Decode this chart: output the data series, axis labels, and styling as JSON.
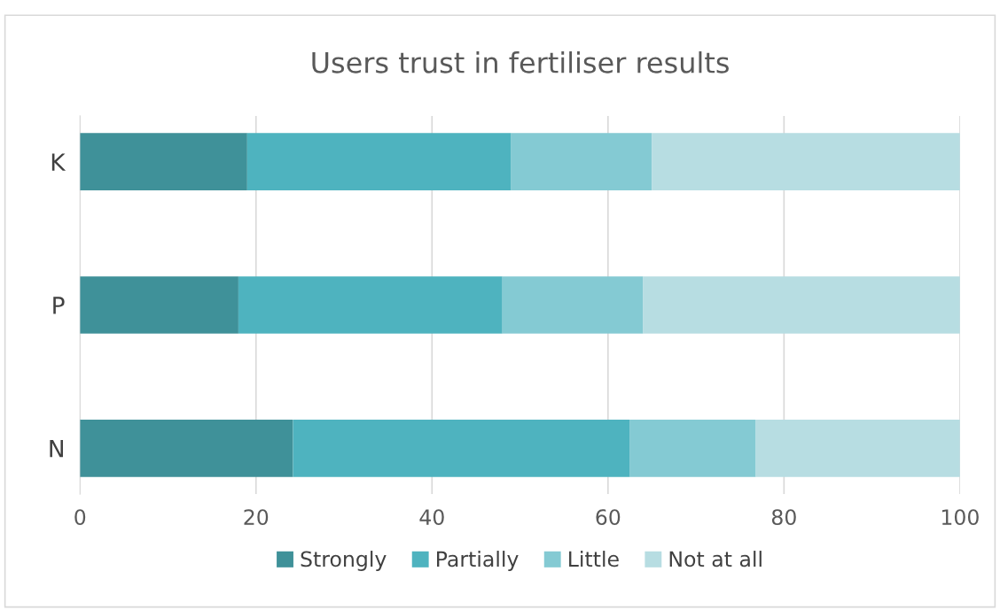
{
  "chart_data": {
    "type": "bar",
    "orientation": "horizontal",
    "stacked": true,
    "title": "Users trust in fertiliser results",
    "categories": [
      "K",
      "P",
      "N"
    ],
    "series": [
      {
        "name": "Strongly",
        "color": "#3f9199",
        "values": [
          19,
          18,
          24.2
        ]
      },
      {
        "name": "Partially",
        "color": "#4eb3bf",
        "values": [
          30,
          30,
          38.3
        ]
      },
      {
        "name": "Little",
        "color": "#84cad3",
        "values": [
          16,
          16,
          14.3
        ]
      },
      {
        "name": "Not at all",
        "color": "#b7dde2",
        "values": [
          35,
          36,
          23.2
        ]
      }
    ],
    "xlim": [
      0,
      100
    ],
    "xticks": [
      0,
      20,
      40,
      60,
      80,
      100
    ],
    "grid": "x",
    "legend": "bottom"
  }
}
